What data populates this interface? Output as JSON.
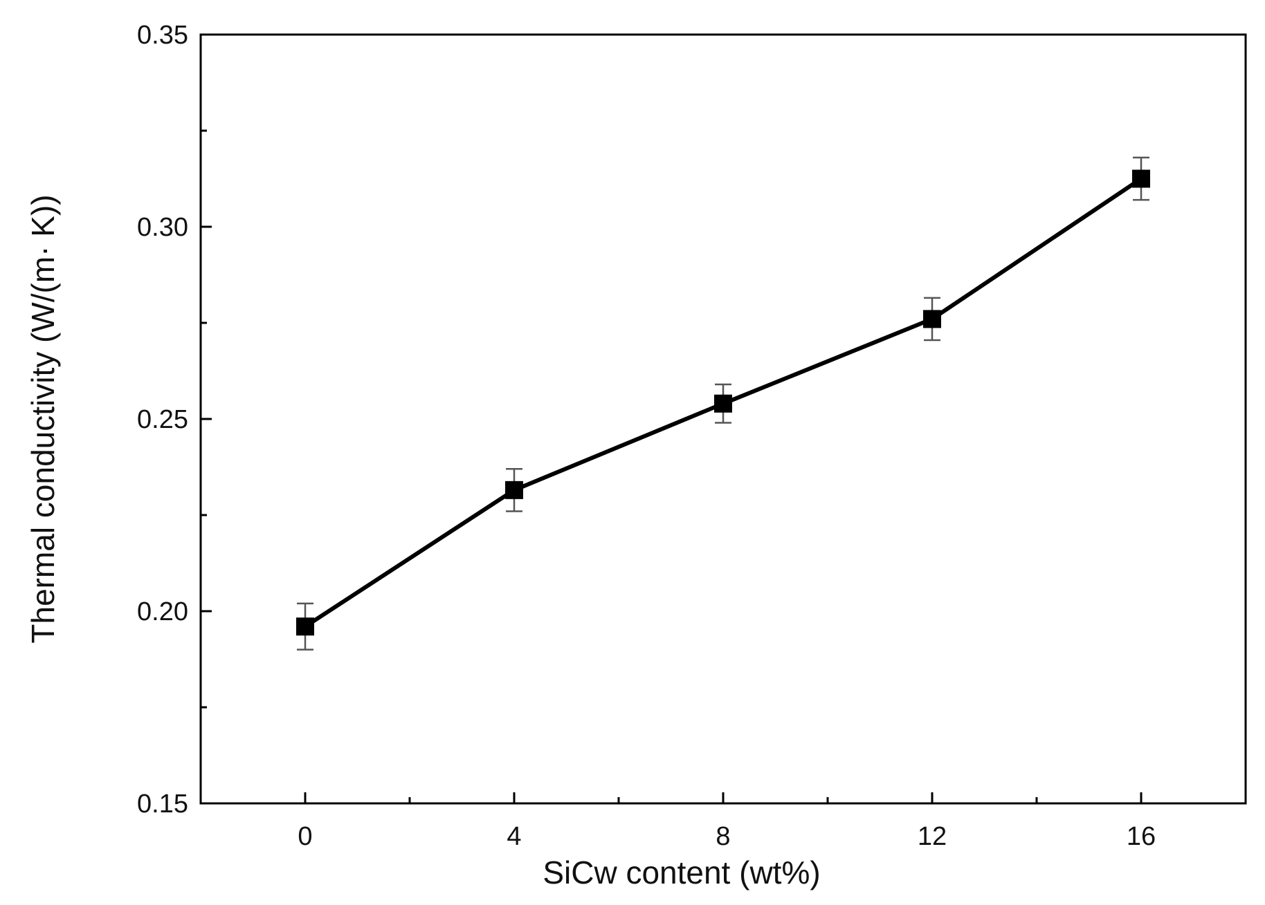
{
  "chart_data": {
    "type": "line",
    "xlabel": "SiCw content (wt%)",
    "ylabel": "Thermal conductivity (W/(m· K))",
    "xlim": [
      -2,
      18
    ],
    "ylim": [
      0.15,
      0.35
    ],
    "x_ticks": [
      0,
      4,
      8,
      12,
      16
    ],
    "x_tick_labels": [
      "0",
      "4",
      "8",
      "12",
      "16"
    ],
    "x_minor_ticks": [
      2,
      6,
      10,
      14
    ],
    "y_ticks": [
      0.15,
      0.2,
      0.25,
      0.3,
      0.35
    ],
    "y_tick_labels": [
      "0.15",
      "0.20",
      "0.25",
      "0.30",
      "0.35"
    ],
    "y_minor_ticks": [
      0.175,
      0.225,
      0.275,
      0.325
    ],
    "grid": false,
    "marker": "square",
    "series": [
      {
        "x": [
          0,
          4,
          8,
          12,
          16
        ],
        "y": [
          0.196,
          0.2315,
          0.254,
          0.276,
          0.3125
        ],
        "error": [
          0.006,
          0.0055,
          0.005,
          0.0055,
          0.0055
        ],
        "color": "#000000"
      }
    ]
  }
}
